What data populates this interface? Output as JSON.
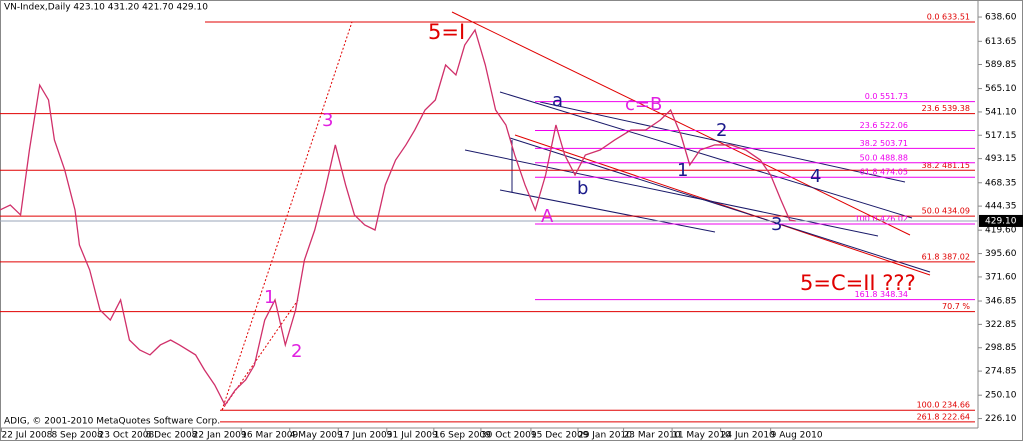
{
  "header": {
    "title": "VN-Index,Daily 423.10 431.20 421.70 429.10",
    "footer": "ADIG, © 2001-2010 MetaQuotes Software Corp."
  },
  "chart_data": {
    "type": "line",
    "color": "#d0306a",
    "x": [
      0,
      7,
      14,
      20,
      27,
      33,
      37,
      44,
      51,
      54,
      61,
      68,
      75,
      82,
      88,
      95,
      102,
      109,
      116,
      122,
      133,
      139,
      146,
      153,
      160,
      167,
      173,
      180,
      187,
      194,
      201,
      207,
      214,
      221,
      228,
      235,
      241,
      248,
      255,
      262,
      269,
      276,
      282,
      289,
      296,
      303,
      310,
      316,
      323,
      330,
      337,
      344,
      350,
      357,
      364,
      371,
      378,
      384,
      391,
      398,
      408,
      418,
      429,
      439,
      449,
      456,
      463,
      469,
      476,
      486,
      497,
      507,
      517,
      524,
      531,
      537,
      541
    ],
    "values": [
      440.4,
      445.5,
      435.3,
      502.0,
      568.7,
      553.4,
      512.3,
      481.5,
      440.4,
      404.4,
      378.7,
      337.6,
      327.3,
      348.0,
      306.8,
      296.6,
      291.5,
      301.7,
      306.8,
      301.7,
      291.5,
      276.1,
      260.6,
      240.0,
      255.5,
      265.8,
      281.1,
      327.3,
      348.0,
      301.7,
      337.6,
      389.0,
      419.8,
      460.9,
      507.2,
      466.1,
      435.3,
      425.0,
      419.8,
      466.1,
      491.7,
      507.2,
      522.5,
      543.1,
      553.4,
      589.3,
      579.1,
      609.8,
      625.3,
      589.3,
      543.1,
      527.7,
      496.8,
      466.1,
      440.4,
      476.3,
      527.7,
      496.8,
      476.3,
      496.8,
      502.0,
      512.3,
      522.5,
      522.5,
      532.8,
      543.1,
      517.4,
      486.6,
      502.0,
      507.2,
      507.2,
      502.0,
      491.7,
      476.3,
      450.6,
      429.9,
      429.1
    ],
    "xlim": [
      0,
      665
    ],
    "xticks": [
      {
        "value": 1,
        "label": "22 Jul 2008"
      },
      {
        "value": 35,
        "label": "8 Sep 2008"
      },
      {
        "value": 67,
        "label": "23 Oct 2008"
      },
      {
        "value": 99,
        "label": "8 Dec 2008"
      },
      {
        "value": 131,
        "label": "22 Jan 2009"
      },
      {
        "value": 164,
        "label": "16 Mar 2009"
      },
      {
        "value": 197,
        "label": "4 May 2009"
      },
      {
        "value": 230,
        "label": "17 Jun 2009"
      },
      {
        "value": 263,
        "label": "31 Jul 2009"
      },
      {
        "value": 295,
        "label": "16 Sep 2009"
      },
      {
        "value": 327,
        "label": "30 Oct 2009"
      },
      {
        "value": 361,
        "label": "15 Dec 2009"
      },
      {
        "value": 393,
        "label": "29 Jan 2010"
      },
      {
        "value": 424,
        "label": "23 Mar 2010"
      },
      {
        "value": 457,
        "label": "11 May 2010"
      },
      {
        "value": 490,
        "label": "24 Jun 2010"
      },
      {
        "value": 524,
        "label": "9 Aug 2010"
      }
    ],
    "ylim": [
      216.4,
      656.1
    ],
    "yticks": [
      {
        "value": 638.6,
        "label": "638.60"
      },
      613.65,
      589.85,
      {
        "value": 565.1,
        "label": "565.10"
      },
      {
        "value": 541.1,
        "label": "541.10"
      },
      517.15,
      493.15,
      468.35,
      444.35,
      {
        "value": 419.6,
        "label": "419.60"
      },
      {
        "value": 395.6,
        "label": "395.60"
      },
      {
        "value": 371.6,
        "label": "371.60"
      },
      346.85,
      322.85,
      298.85,
      274.85,
      {
        "value": 250.1,
        "label": "250.10"
      },
      {
        "value": 226.1,
        "label": "226.10"
      }
    ],
    "last_price": {
      "value": 429.1,
      "label": "429.10"
    },
    "fib_color": "#e00000",
    "fib_levels": [
      {
        "price": 633.51,
        "label": "0.0 633.51"
      },
      {
        "price": 539.38,
        "label": "23.6 539.38"
      },
      {
        "price": 481.15,
        "label": "38.2 481.15"
      },
      {
        "price": 434.09,
        "label": "50.0 434.09"
      },
      {
        "price": 387.02,
        "label": "61.8 387.02"
      },
      {
        "price": 336,
        "label": "70.7 %"
      },
      {
        "price": 234.66,
        "label": "100.0 234.66"
      },
      {
        "price": 222.64,
        "label": "261.8 222.64"
      }
    ],
    "fib_color_2": "#ee00ee",
    "fib_levels_2": [
      {
        "price": 551.73,
        "label": "0.0 551.73"
      },
      {
        "price": 522.06,
        "label": "23.6 522.06"
      },
      {
        "price": 503.71,
        "label": "38.2 503.71"
      },
      {
        "price": 488.88,
        "label": "50.0 488.88"
      },
      {
        "price": 474.05,
        "label": "61.8 474.05"
      },
      {
        "price": 426.02,
        "label": "100.0 426.02"
      },
      {
        "price": 348.34,
        "label": "161.8 348.34"
      }
    ],
    "annotations": [
      {
        "text": "5=I",
        "color": "#e00000"
      },
      {
        "text": "3",
        "color": "#e020e0"
      },
      {
        "text": "1",
        "color": "#e020e0"
      },
      {
        "text": "2",
        "color": "#e020e0"
      },
      {
        "text": "a",
        "color": "#1a1a8a"
      },
      {
        "text": "c=B",
        "color": "#e020e0"
      },
      {
        "text": "b",
        "color": "#1a1a8a"
      },
      {
        "text": "A",
        "color": "#e020e0"
      },
      {
        "text": "2",
        "color": "#1a1a8a"
      },
      {
        "text": "1",
        "color": "#1a1a8a"
      },
      {
        "text": "4",
        "color": "#1a1a8a"
      },
      {
        "text": "3",
        "color": "#1a1a8a"
      },
      {
        "text": "5=C=II  ???",
        "color": "#e00000"
      }
    ]
  }
}
